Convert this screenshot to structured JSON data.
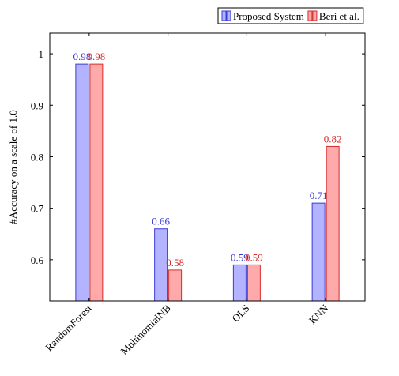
{
  "chart_data": {
    "type": "bar",
    "title": "",
    "xlabel": "",
    "ylabel": "#Accuracy on a scale of 1.0",
    "categories": [
      "RandomForest",
      "MultinomialNB",
      "OLS",
      "KNN"
    ],
    "series": [
      {
        "name": "Proposed System",
        "values": [
          0.98,
          0.66,
          0.59,
          0.71
        ],
        "labels": [
          "0.98",
          "0.66",
          "0.59",
          "0.71"
        ],
        "color": "#3b3bd6",
        "fill": "#b3b3ff"
      },
      {
        "name": "Beri et al.",
        "values": [
          0.98,
          0.58,
          0.59,
          0.82
        ],
        "labels": [
          "0.98",
          "0.58",
          "0.59",
          "0.82"
        ],
        "color": "#d62b2b",
        "fill": "#ffaaaa"
      }
    ],
    "ylim": [
      0.52,
      1.04
    ],
    "yticks": [
      0.6,
      0.7,
      0.8,
      0.9,
      1
    ],
    "ytick_labels": [
      "0.6",
      "0.7",
      "0.8",
      "0.9",
      "1"
    ],
    "grid": false,
    "legend": "top-right"
  }
}
